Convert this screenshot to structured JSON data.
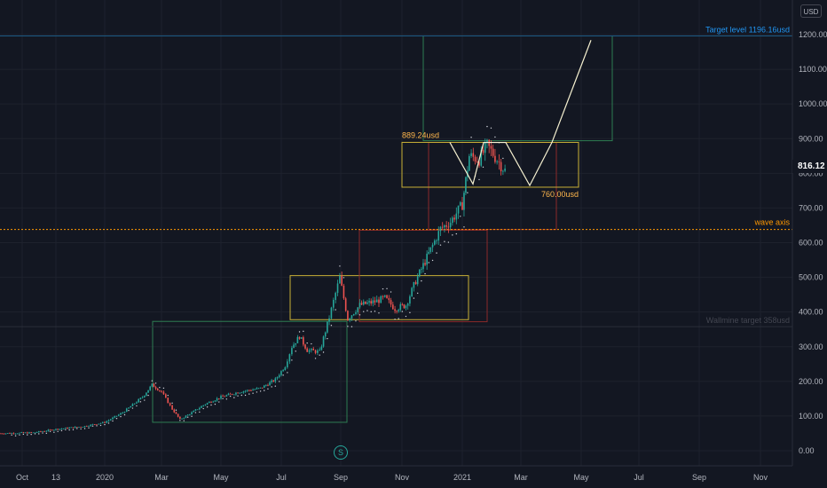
{
  "chart_data": {
    "type": "candlestick",
    "currency": "USD",
    "last_price": "816.12",
    "ylim": [
      -10,
      1240
    ],
    "y_ticks": [
      "0.00",
      "100.00",
      "200.00",
      "300.00",
      "400.00",
      "500.00",
      "600.00",
      "700.00",
      "800.00",
      "900.00",
      "1000.00",
      "1100.00",
      "1200.00"
    ],
    "x_ticks": [
      "Oct",
      "13",
      "2020",
      "Mar",
      "May",
      "Jul",
      "Sep",
      "Nov",
      "2021",
      "Mar",
      "May",
      "Jul",
      "Sep",
      "Nov"
    ],
    "x_tick_dates": [
      "2019-10-01",
      "2019-11-13",
      "2020-01-01",
      "2020-03-01",
      "2020-05-01",
      "2020-07-01",
      "2020-09-01",
      "2020-11-01",
      "2021-01-01",
      "2021-03-01",
      "2021-05-01",
      "2021-07-01",
      "2021-09-01",
      "2021-11-01"
    ],
    "annotations": {
      "target_level": {
        "text": "Target level 1196.16usd",
        "value": 1196.16,
        "color": "#2196f3"
      },
      "wave_axis": {
        "text": "wave axis",
        "value": 638,
        "color": "#ff9800"
      },
      "wallmine_target": {
        "text": "Wallmine target 358usd",
        "value": 358,
        "color": "#434651"
      },
      "range_high": {
        "text": "889.24usd",
        "value": 889.24,
        "color": "#ffb74d"
      },
      "range_low": {
        "text": "760.00usd",
        "value": 760.0,
        "color": "#ffb74d"
      }
    },
    "event_marker": "S",
    "price_series": [
      [
        "2019-09-20",
        50
      ],
      [
        "2019-10-15",
        52
      ],
      [
        "2019-11-13",
        62
      ],
      [
        "2019-12-10",
        70
      ],
      [
        "2020-01-01",
        82
      ],
      [
        "2020-01-20",
        110
      ],
      [
        "2020-02-10",
        155
      ],
      [
        "2020-02-20",
        190
      ],
      [
        "2020-03-01",
        170
      ],
      [
        "2020-03-12",
        120
      ],
      [
        "2020-03-20",
        90
      ],
      [
        "2020-04-01",
        110
      ],
      [
        "2020-04-15",
        135
      ],
      [
        "2020-05-01",
        155
      ],
      [
        "2020-05-20",
        170
      ],
      [
        "2020-06-10",
        180
      ],
      [
        "2020-06-25",
        205
      ],
      [
        "2020-07-05",
        245
      ],
      [
        "2020-07-12",
        300
      ],
      [
        "2020-07-20",
        330
      ],
      [
        "2020-07-28",
        290
      ],
      [
        "2020-08-10",
        285
      ],
      [
        "2020-08-20",
        385
      ],
      [
        "2020-08-31",
        500
      ],
      [
        "2020-09-08",
        380
      ],
      [
        "2020-09-20",
        420
      ],
      [
        "2020-10-05",
        430
      ],
      [
        "2020-10-15",
        440
      ],
      [
        "2020-10-25",
        410
      ],
      [
        "2020-11-05",
        420
      ],
      [
        "2020-11-15",
        490
      ],
      [
        "2020-11-30",
        580
      ],
      [
        "2020-12-10",
        640
      ],
      [
        "2020-12-20",
        660
      ],
      [
        "2021-01-01",
        710
      ],
      [
        "2021-01-08",
        850
      ],
      [
        "2021-01-18",
        840
      ],
      [
        "2021-01-26",
        880
      ],
      [
        "2021-02-05",
        840
      ],
      [
        "2021-02-15",
        800
      ]
    ]
  }
}
